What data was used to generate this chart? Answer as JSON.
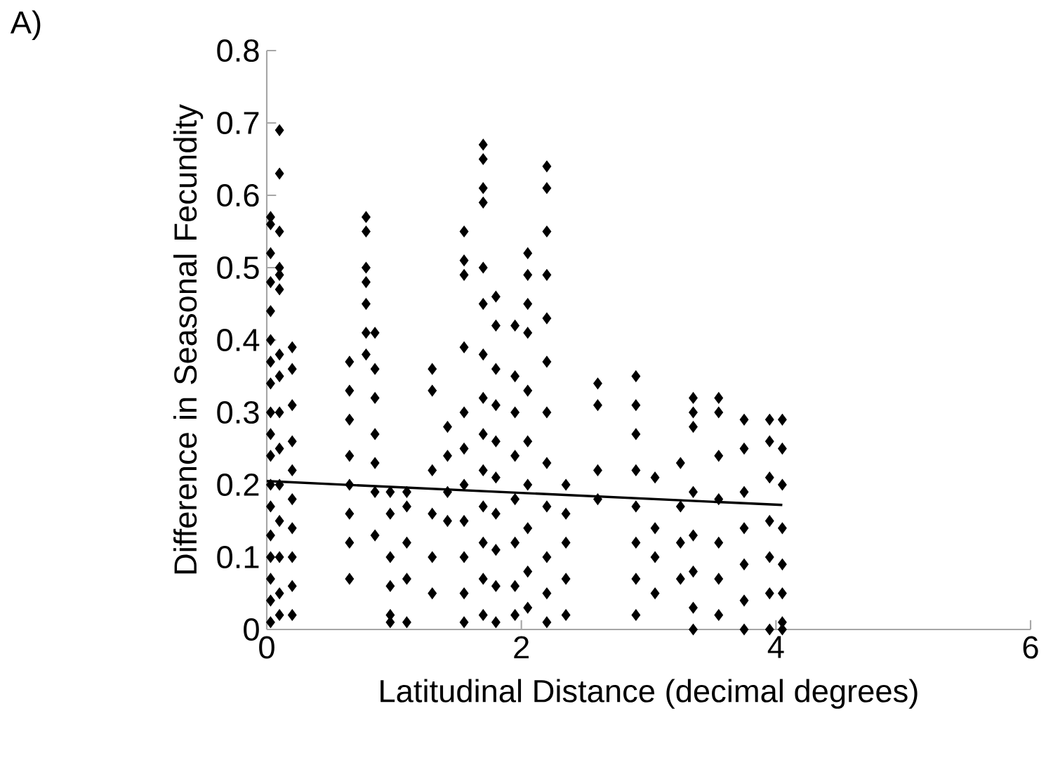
{
  "chart_data": {
    "type": "scatter",
    "xlabel": "Latitudinal Distance (decimal degrees)",
    "ylabel": "Difference in Seasonal Fecundity",
    "annotations": [
      "A)"
    ],
    "xlim": [
      0,
      6
    ],
    "xticks": [
      0,
      2,
      4,
      6
    ],
    "ylim": [
      0,
      0.8
    ],
    "yticks": [
      0,
      0.1,
      0.2,
      0.3,
      0.4,
      0.5,
      0.6,
      0.7,
      0.8
    ],
    "grid": false,
    "legend": false,
    "marker": "diamond",
    "series": [
      {
        "color": "#000000",
        "x": [
          0.03,
          0.03,
          0.03,
          0.03,
          0.03,
          0.03,
          0.03,
          0.03,
          0.03,
          0.03,
          0.03,
          0.03,
          0.03,
          0.03,
          0.03,
          0.03,
          0.03,
          0.03,
          0.1,
          0.1,
          0.1,
          0.1,
          0.1,
          0.1,
          0.1,
          0.1,
          0.1,
          0.1,
          0.1,
          0.1,
          0.1,
          0.1,
          0.1,
          0.2,
          0.2,
          0.2,
          0.2,
          0.2,
          0.2,
          0.2,
          0.2,
          0.2,
          0.2,
          0.65,
          0.65,
          0.65,
          0.65,
          0.65,
          0.65,
          0.65,
          0.65,
          0.78,
          0.78,
          0.78,
          0.78,
          0.78,
          0.78,
          0.78,
          0.85,
          0.85,
          0.85,
          0.85,
          0.85,
          0.85,
          0.85,
          0.97,
          0.97,
          0.97,
          0.97,
          0.97,
          0.97,
          1.1,
          1.1,
          1.1,
          1.1,
          1.1,
          1.3,
          1.3,
          1.3,
          1.3,
          1.3,
          1.3,
          1.42,
          1.42,
          1.42,
          1.42,
          1.55,
          1.55,
          1.55,
          1.55,
          1.55,
          1.55,
          1.55,
          1.55,
          1.55,
          1.55,
          1.55,
          1.7,
          1.7,
          1.7,
          1.7,
          1.7,
          1.7,
          1.7,
          1.7,
          1.7,
          1.7,
          1.7,
          1.7,
          1.7,
          1.7,
          1.8,
          1.8,
          1.8,
          1.8,
          1.8,
          1.8,
          1.8,
          1.8,
          1.8,
          1.8,
          1.95,
          1.95,
          1.95,
          1.95,
          1.95,
          1.95,
          1.95,
          1.95,
          2.05,
          2.05,
          2.05,
          2.05,
          2.05,
          2.05,
          2.05,
          2.05,
          2.05,
          2.05,
          2.2,
          2.2,
          2.2,
          2.2,
          2.2,
          2.2,
          2.2,
          2.2,
          2.2,
          2.2,
          2.2,
          2.2,
          2.35,
          2.35,
          2.35,
          2.35,
          2.35,
          2.6,
          2.6,
          2.6,
          2.6,
          2.9,
          2.9,
          2.9,
          2.9,
          2.9,
          2.9,
          2.9,
          2.9,
          3.05,
          3.05,
          3.05,
          3.05,
          3.25,
          3.25,
          3.25,
          3.25,
          3.35,
          3.35,
          3.35,
          3.35,
          3.35,
          3.35,
          3.35,
          3.35,
          3.55,
          3.55,
          3.55,
          3.55,
          3.55,
          3.55,
          3.55,
          3.75,
          3.75,
          3.75,
          3.75,
          3.75,
          3.75,
          3.75,
          3.95,
          3.95,
          3.95,
          3.95,
          3.95,
          3.95,
          3.95,
          4.05,
          4.05,
          4.05,
          4.05,
          4.05,
          4.05,
          4.05,
          4.05
        ],
        "values": [
          0.57,
          0.56,
          0.52,
          0.48,
          0.44,
          0.4,
          0.37,
          0.34,
          0.3,
          0.27,
          0.24,
          0.2,
          0.17,
          0.13,
          0.1,
          0.07,
          0.04,
          0.01,
          0.69,
          0.63,
          0.55,
          0.5,
          0.49,
          0.47,
          0.38,
          0.35,
          0.3,
          0.25,
          0.2,
          0.15,
          0.1,
          0.05,
          0.02,
          0.39,
          0.36,
          0.31,
          0.26,
          0.22,
          0.18,
          0.14,
          0.1,
          0.06,
          0.02,
          0.37,
          0.33,
          0.29,
          0.24,
          0.2,
          0.16,
          0.12,
          0.07,
          0.57,
          0.55,
          0.5,
          0.48,
          0.45,
          0.41,
          0.38,
          0.41,
          0.36,
          0.32,
          0.27,
          0.23,
          0.19,
          0.13,
          0.19,
          0.16,
          0.1,
          0.06,
          0.02,
          0.01,
          0.19,
          0.17,
          0.12,
          0.07,
          0.01,
          0.36,
          0.33,
          0.22,
          0.16,
          0.1,
          0.05,
          0.28,
          0.24,
          0.19,
          0.15,
          0.55,
          0.51,
          0.49,
          0.39,
          0.3,
          0.25,
          0.2,
          0.15,
          0.1,
          0.05,
          0.01,
          0.67,
          0.65,
          0.61,
          0.59,
          0.5,
          0.45,
          0.38,
          0.32,
          0.27,
          0.22,
          0.17,
          0.12,
          0.07,
          0.02,
          0.46,
          0.42,
          0.36,
          0.31,
          0.26,
          0.21,
          0.16,
          0.11,
          0.06,
          0.01,
          0.42,
          0.35,
          0.3,
          0.24,
          0.18,
          0.12,
          0.06,
          0.02,
          0.52,
          0.49,
          0.45,
          0.41,
          0.33,
          0.26,
          0.2,
          0.14,
          0.08,
          0.03,
          0.64,
          0.61,
          0.55,
          0.49,
          0.43,
          0.37,
          0.3,
          0.23,
          0.17,
          0.1,
          0.05,
          0.01,
          0.2,
          0.16,
          0.12,
          0.07,
          0.02,
          0.34,
          0.31,
          0.22,
          0.18,
          0.35,
          0.31,
          0.27,
          0.22,
          0.17,
          0.12,
          0.07,
          0.02,
          0.21,
          0.14,
          0.1,
          0.05,
          0.23,
          0.17,
          0.12,
          0.07,
          0.32,
          0.3,
          0.28,
          0.19,
          0.13,
          0.08,
          0.03,
          0.0,
          0.32,
          0.3,
          0.24,
          0.18,
          0.12,
          0.07,
          0.02,
          0.29,
          0.25,
          0.19,
          0.14,
          0.09,
          0.04,
          0.0,
          0.29,
          0.26,
          0.21,
          0.15,
          0.1,
          0.05,
          0.0,
          0.29,
          0.25,
          0.2,
          0.14,
          0.09,
          0.05,
          0.01,
          0.0
        ]
      },
      {
        "type": "line",
        "color": "#000000",
        "marker": "none",
        "line_style": "solid",
        "x": [
          0,
          4.05
        ],
        "values": [
          0.205,
          0.172
        ]
      }
    ]
  }
}
